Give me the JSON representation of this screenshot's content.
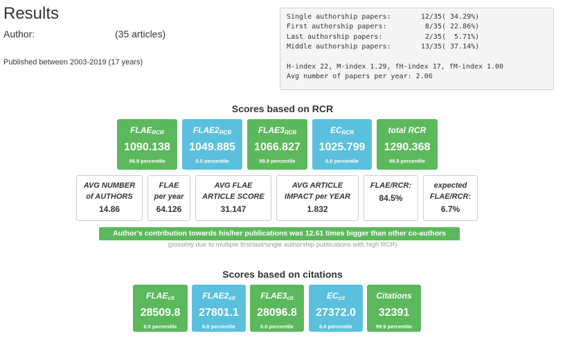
{
  "header": {
    "title": "Results",
    "author_label": "Author:",
    "article_count": "(35 articles)",
    "published": "Published between 2003-2019 (17 years)"
  },
  "stats": {
    "rows": [
      {
        "label": "Single authorship papers:",
        "value": "12/35",
        "percent": "( 34.29%)"
      },
      {
        "label": "First authorship papers:",
        "value": "8/35",
        "percent": "( 22.86%)"
      },
      {
        "label": "Last authorship papers:",
        "value": "2/35",
        "percent": "(  5.71%)"
      },
      {
        "label": "Middle authorship papers:",
        "value": "13/35",
        "percent": "( 37.14%)"
      }
    ],
    "indexes": "H-index 22, M-index 1.29, fH-index 17, fM-index 1.00",
    "avg_papers": "Avg number of papers per year: 2.06"
  },
  "rcr": {
    "title": "Scores based on RCR",
    "cards": [
      {
        "label": "FLAE",
        "sub": "RCR",
        "value": "1090.138",
        "percentile": "99.9 percentile",
        "color": "#5cb85c"
      },
      {
        "label": "FLAE2",
        "sub": "RCR",
        "value": "1049.885",
        "percentile": "0.0 percentile",
        "color": "#5bc0de"
      },
      {
        "label": "FLAE3",
        "sub": "RCR",
        "value": "1066.827",
        "percentile": "99.9 percentile",
        "color": "#5cb85c"
      },
      {
        "label": "EC",
        "sub": "RCR",
        "value": "1025.799",
        "percentile": "0.0 percentile",
        "color": "#5bc0de"
      },
      {
        "label": "total RCR",
        "sub": "",
        "value": "1290.368",
        "percentile": "99.9 percentile",
        "color": "#5cb85c"
      }
    ],
    "metrics": [
      {
        "line1": "AVG NUMBER",
        "line2": "of AUTHORS",
        "value": "14.86"
      },
      {
        "line1": "FLAE",
        "line2": "per year",
        "value": "64.126"
      },
      {
        "line1": "AVG FLAE",
        "line2": "ARTICLE SCORE",
        "value": "31.147"
      },
      {
        "line1": "AVG ARTICLE",
        "line2": "IMPACT per YEAR",
        "value": "1.832"
      },
      {
        "line1": "FLAE/RCR:",
        "line2": "",
        "value": "84.5%"
      },
      {
        "line1": "expected",
        "line2": "FLAE/RCR:",
        "value": "6.7%"
      }
    ]
  },
  "contribution": {
    "text": "Author's contribution towards his/her publications was 12.61 times bigger than other co-authors",
    "note": "(possibly due to multiple first/last/single authorship publications with high RCR)"
  },
  "citations": {
    "title": "Scores based on citations",
    "cards": [
      {
        "label": "FLAE",
        "sub": "cit",
        "value": "28509.8",
        "percentile": "0.0 percentile",
        "color": "#5cb85c"
      },
      {
        "label": "FLAE2",
        "sub": "cit",
        "value": "27801.1",
        "percentile": "0.0 percentile",
        "color": "#5bc0de"
      },
      {
        "label": "FLAE3",
        "sub": "cit",
        "value": "28096.8",
        "percentile": "0.0 percentile",
        "color": "#5cb85c"
      },
      {
        "label": "EC",
        "sub": "cit",
        "value": "27372.0",
        "percentile": "0.0 percentile",
        "color": "#5bc0de"
      },
      {
        "label": "Citations",
        "sub": "",
        "value": "32391",
        "percentile": "99.9 percentile",
        "color": "#5cb85c"
      }
    ]
  }
}
